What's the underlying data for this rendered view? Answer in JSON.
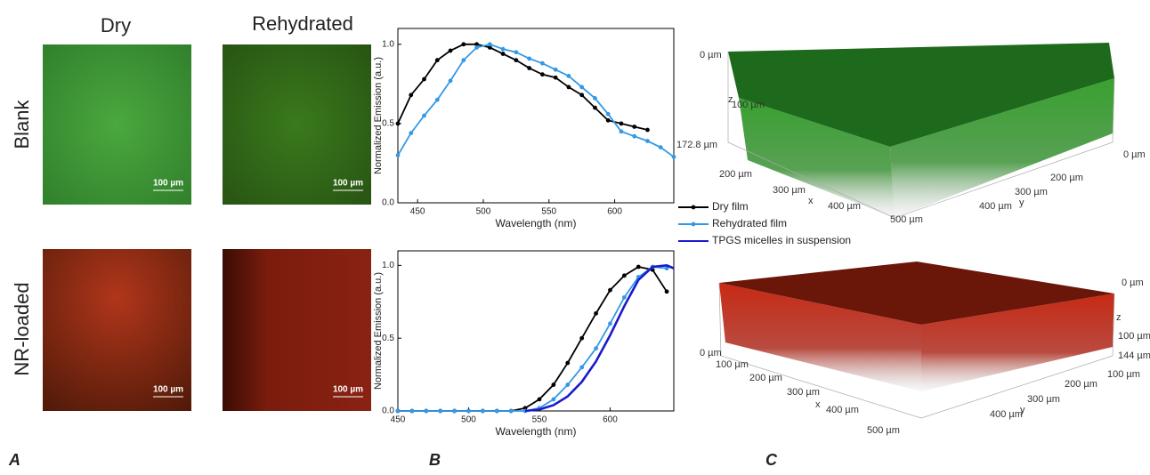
{
  "panel_labels": [
    "A",
    "B",
    "C"
  ],
  "panel_a": {
    "columns": [
      "Dry",
      "Rehydrated"
    ],
    "rows": [
      "Blank",
      "NR-loaded"
    ],
    "scale_bars": [
      "100 µm",
      "100 µm",
      "100 µm",
      "100 µm"
    ]
  },
  "chart_data": [
    {
      "type": "line",
      "ylabel": "Normalized Emission (a.u.)",
      "xlabel": "Wavelength (nm)",
      "xlim": [
        435,
        645
      ],
      "xticks": [
        450,
        500,
        550,
        600
      ],
      "ylim": [
        0,
        1.1
      ],
      "yticks": [
        {
          "value": 0,
          "label": "0.0"
        },
        0.5,
        {
          "value": 1,
          "label": "1.0"
        }
      ],
      "series": [
        {
          "color": "#000000",
          "markers": true,
          "x": [
            435,
            445,
            455,
            465,
            475,
            485,
            495,
            505,
            515,
            525,
            535,
            545,
            555,
            565,
            575,
            585,
            595,
            605,
            615,
            625
          ],
          "values": [
            0.5,
            0.68,
            0.78,
            0.9,
            0.96,
            1.0,
            1.0,
            0.98,
            0.94,
            0.9,
            0.85,
            0.81,
            0.79,
            0.73,
            0.68,
            0.6,
            0.52,
            0.5,
            0.48,
            0.46
          ]
        },
        {
          "color": "#3399e6",
          "markers": true,
          "x": [
            435,
            445,
            455,
            465,
            475,
            485,
            495,
            505,
            515,
            525,
            535,
            545,
            555,
            565,
            575,
            585,
            595,
            605,
            615,
            625,
            635,
            645
          ],
          "values": [
            0.3,
            0.44,
            0.55,
            0.65,
            0.77,
            0.9,
            0.98,
            1.0,
            0.97,
            0.95,
            0.91,
            0.88,
            0.84,
            0.8,
            0.73,
            0.66,
            0.56,
            0.45,
            0.42,
            0.39,
            0.35,
            0.29
          ]
        }
      ]
    },
    {
      "type": "line",
      "ylabel": "Normalized Emission (a.u.)",
      "xlabel": "Wavelength (nm)",
      "xlim": [
        450,
        645
      ],
      "xticks": [
        450,
        500,
        550,
        600
      ],
      "ylim": [
        0,
        1.1
      ],
      "yticks": [
        {
          "value": 0,
          "label": "0.0"
        },
        0.5,
        {
          "value": 1,
          "label": "1.0"
        }
      ],
      "series": [
        {
          "name": "Dry film",
          "color": "#000000",
          "markers": true,
          "x": [
            450,
            460,
            470,
            480,
            490,
            500,
            510,
            520,
            530,
            540,
            550,
            560,
            570,
            580,
            590,
            600,
            610,
            620,
            630,
            640
          ],
          "values": [
            0,
            0,
            0,
            0,
            0,
            0,
            0,
            0,
            0,
            0.02,
            0.08,
            0.18,
            0.33,
            0.5,
            0.67,
            0.83,
            0.93,
            0.99,
            0.97,
            0.82
          ]
        },
        {
          "name": "Rehydrated film",
          "color": "#3399e6",
          "markers": true,
          "x": [
            450,
            460,
            470,
            480,
            490,
            500,
            510,
            520,
            530,
            540,
            550,
            560,
            570,
            580,
            590,
            600,
            610,
            620,
            630,
            640
          ],
          "values": [
            0,
            0,
            0,
            0,
            0,
            0,
            0,
            0,
            0,
            0,
            0.02,
            0.08,
            0.18,
            0.3,
            0.43,
            0.6,
            0.78,
            0.92,
            0.99,
            0.98
          ]
        },
        {
          "name": "TPGS micelles in suspension",
          "color": "#1a1acc",
          "markers": false,
          "x": [
            540,
            550,
            560,
            570,
            580,
            590,
            600,
            610,
            620,
            630,
            640,
            645
          ],
          "values": [
            0,
            0.01,
            0.04,
            0.1,
            0.2,
            0.34,
            0.52,
            0.72,
            0.9,
            0.99,
            1.0,
            0.98
          ]
        }
      ]
    }
  ],
  "panel_c": {
    "top": [
      "0 µm",
      "z",
      "100 µm",
      "172.8 µm",
      "200 µm",
      "300 µm",
      "400 µm",
      "500 µm",
      "x",
      "0 µm",
      "200 µm",
      "300 µm",
      "400 µm",
      "y"
    ],
    "bottom": [
      "0 µm",
      "z",
      "100 µm",
      "144 µm",
      "0 µm",
      "100 µm",
      "200 µm",
      "300 µm",
      "400 µm",
      "500 µm",
      "x",
      "100 µm",
      "200 µm",
      "300 µm",
      "400 µm",
      "y"
    ]
  }
}
